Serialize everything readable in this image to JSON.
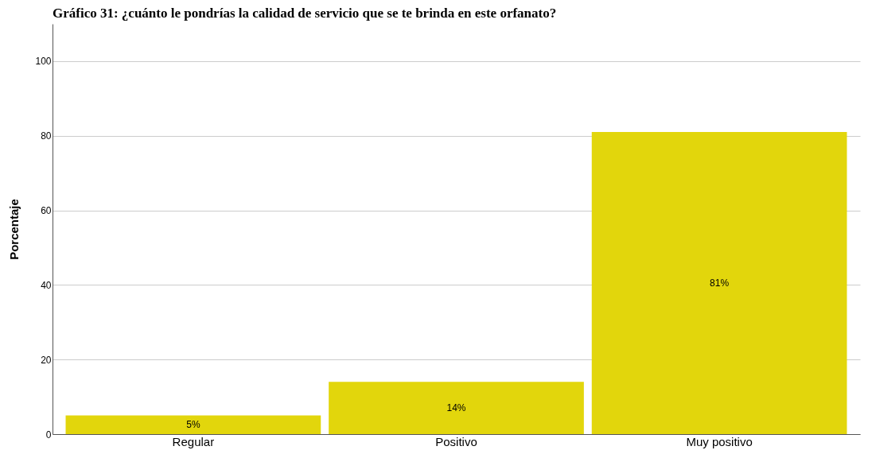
{
  "chart_data": {
    "type": "bar",
    "title": "Gráfico 31: ¿cuánto le pondrías la calidad de servicio que se te brinda en este orfanato?",
    "ylabel": "Porcentaje",
    "categories": [
      "Regular",
      "Positivo",
      "Muy positivo"
    ],
    "values": [
      5,
      14,
      81
    ],
    "value_labels": [
      "5%",
      "14%",
      "81%"
    ],
    "color": "#e2d60c",
    "ylim": [
      0,
      110
    ],
    "yticks": [
      0,
      20,
      40,
      60,
      80,
      100
    ],
    "grid": "y"
  }
}
